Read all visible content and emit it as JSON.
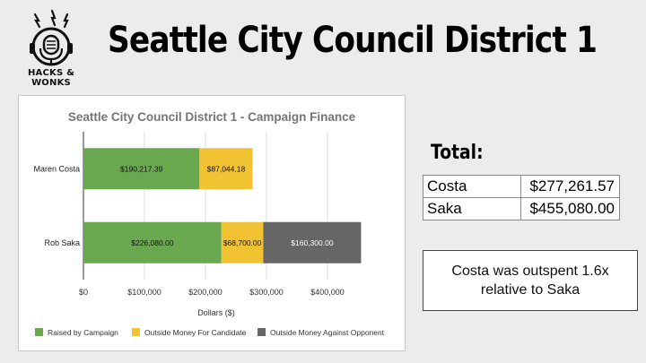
{
  "header": {
    "title": "Seattle City Council District 1",
    "logo_text": "HACKS & WONKS"
  },
  "totals": {
    "label": "Total:",
    "rows": [
      {
        "name": "Costa",
        "amount": "$277,261.57"
      },
      {
        "name": "Saka",
        "amount": "$455,080.00"
      }
    ]
  },
  "note": "Costa was outspent 1.6x relative to Saka",
  "colors": {
    "raised": "#6aa84f",
    "outside_for": "#f1c232",
    "outside_against": "#666666"
  },
  "chart_data": {
    "type": "bar",
    "orientation": "horizontal",
    "stacked": true,
    "title": "Seattle City Council District 1 - Campaign Finance",
    "xlabel": "Dollars ($)",
    "ylabel": "",
    "xlim": [
      0,
      500000
    ],
    "xticks": [
      0,
      100000,
      200000,
      300000,
      400000
    ],
    "xtick_labels": [
      "$0",
      "$100,000",
      "$200,000",
      "$300,000",
      "$400,000"
    ],
    "grid": true,
    "legend_position": "bottom",
    "categories": [
      "Maren Costa",
      "Rob Saka"
    ],
    "series": [
      {
        "name": "Raised by Campaign",
        "color": "#6aa84f",
        "values": [
          190217.39,
          226080.0
        ],
        "labels": [
          "$190,217.39",
          "$226,080.00"
        ]
      },
      {
        "name": "Outside Money For Candidate",
        "color": "#f1c232",
        "values": [
          87044.18,
          68700.0
        ],
        "labels": [
          "$87,044.18",
          "$68,700.00"
        ]
      },
      {
        "name": "Outside Money Against Opponent",
        "color": "#666666",
        "values": [
          0,
          160300.0
        ],
        "labels": [
          "",
          "$160,300.00"
        ]
      }
    ]
  }
}
